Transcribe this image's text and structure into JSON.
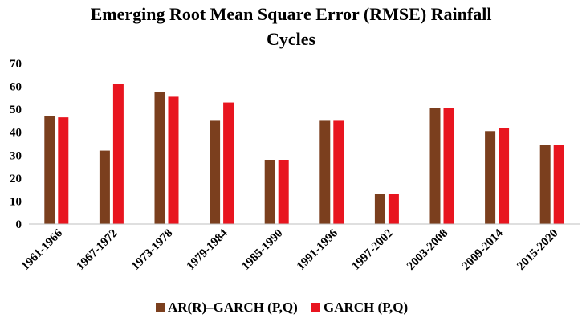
{
  "chart_data": {
    "type": "bar",
    "title_line1": "Emerging Root Mean Square Error (RMSE) Rainfall",
    "title_line2": "Cycles",
    "categories": [
      "1961-1966",
      "1967-1972",
      "1973-1978",
      "1979-1984",
      "1985-1990",
      "1991-1996",
      "1997-2002",
      "2003-2008",
      "2009-2014",
      "2015-2020"
    ],
    "series": [
      {
        "name": "AR(R)–GARCH (P,Q)",
        "color": "#7b3f1e",
        "values": [
          47,
          32,
          57.5,
          45,
          28,
          45,
          13,
          50.5,
          40.5,
          34.5
        ]
      },
      {
        "name": "GARCH (P,Q)",
        "color": "#e8151f",
        "values": [
          46.5,
          61,
          55.5,
          53,
          28,
          45,
          13,
          50.5,
          42,
          34.5
        ]
      }
    ],
    "ylim": [
      0,
      70
    ],
    "yticks": [
      "0",
      "10",
      "20",
      "30",
      "40",
      "50",
      "60",
      "70"
    ],
    "xlabel": "",
    "ylabel": "",
    "grid": false,
    "legend_position": "bottom"
  }
}
